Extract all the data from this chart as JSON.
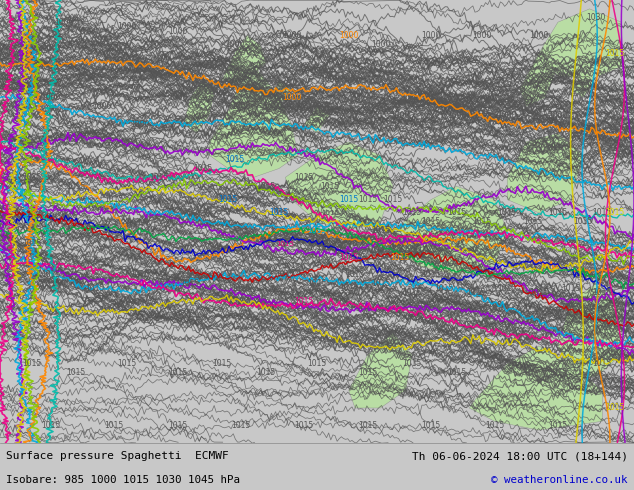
{
  "title_left": "Surface pressure Spaghetti  ECMWF",
  "title_right": "Th 06-06-2024 18:00 UTC (18+144)",
  "subtitle_left": "Isobare: 985 1000 1015 1030 1045 hPa",
  "subtitle_right": "© weatheronline.co.uk",
  "bg_color": "#c8c8c8",
  "map_bg": "#dcdcdc",
  "footer_bg": "#b8b8b8",
  "text_color": "#000000",
  "figsize": [
    6.34,
    4.9
  ],
  "dpi": 100,
  "map_green_color": "#b8e0a0",
  "line_width": 0.7,
  "seed": 42,
  "ensemble_color": "#555555",
  "ensemble_alpha": 0.75,
  "colored_lines": [
    {
      "color": "#ff8800",
      "style": "-",
      "lw": 1.1
    },
    {
      "color": "#aa00cc",
      "style": "-",
      "lw": 1.1
    },
    {
      "color": "#00aaff",
      "style": "-",
      "lw": 1.1
    },
    {
      "color": "#00cccc",
      "style": "-",
      "lw": 1.0
    },
    {
      "color": "#ff00aa",
      "style": "-",
      "lw": 1.0
    },
    {
      "color": "#aacc00",
      "style": "-",
      "lw": 1.0
    },
    {
      "color": "#ffdd00",
      "style": "-",
      "lw": 1.0
    },
    {
      "color": "#0000cc",
      "style": "-",
      "lw": 1.0
    },
    {
      "color": "#cc0000",
      "style": "-",
      "lw": 1.0
    },
    {
      "color": "#00cc44",
      "style": "-",
      "lw": 1.0
    }
  ]
}
